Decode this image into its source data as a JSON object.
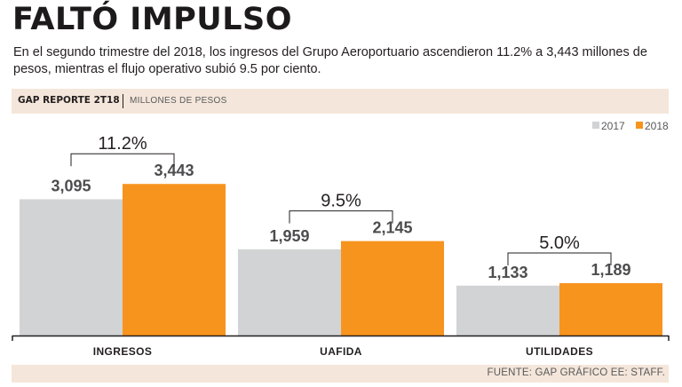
{
  "header": {
    "title": "FALTÓ IMPULSO",
    "subtitle": "En el segundo trimestre del 2018, los ingresos del Grupo Aeroportuario ascendieron 11.2% a 3,443 millones de pesos, mientras el flujo operativo subió 9.5 por ciento."
  },
  "band": {
    "report": "GAP REPORTE 2T18",
    "units": "MILLONES DE PESOS"
  },
  "footer": {
    "source": "FUENTE: GAP GRÁFICO EE: STAFF."
  },
  "colors": {
    "s2017": "#d1d3d4",
    "s2018": "#f7941d",
    "axis": "#231f20",
    "band": "#f4e6da"
  },
  "chart_data": {
    "type": "bar",
    "title": "FALTÓ IMPULSO",
    "ylabel": "Millones de pesos",
    "ylim": [
      0,
      4500
    ],
    "categories": [
      "INGRESOS",
      "UAFIDA",
      "UTILIDADES"
    ],
    "series": [
      {
        "name": "2017",
        "values": [
          3095,
          1959,
          1133
        ],
        "labels": [
          "3,095",
          "1,959",
          "1,133"
        ]
      },
      {
        "name": "2018",
        "values": [
          3443,
          2145,
          1189
        ],
        "labels": [
          "3,443",
          "2,145",
          "1,189"
        ]
      }
    ],
    "growth_labels": [
      "11.2%",
      "9.5%",
      "5.0%"
    ],
    "legend": [
      "2017",
      "2018"
    ],
    "legend_position": "top-right"
  }
}
